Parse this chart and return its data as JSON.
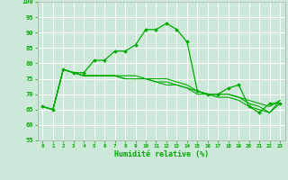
{
  "xlabel": "Humidité relative (%)",
  "xlim": [
    -0.5,
    23.5
  ],
  "ylim": [
    55,
    100
  ],
  "yticks": [
    55,
    60,
    65,
    70,
    75,
    80,
    85,
    90,
    95,
    100
  ],
  "xticks": [
    0,
    1,
    2,
    3,
    4,
    5,
    6,
    7,
    8,
    9,
    10,
    11,
    12,
    13,
    14,
    15,
    16,
    17,
    18,
    19,
    20,
    21,
    22,
    23
  ],
  "bg_color": "#cce8d8",
  "grid_color": "#ffffff",
  "line_color": "#00aa00",
  "line1_x": [
    0,
    1,
    2,
    3,
    4,
    5,
    6,
    7,
    8,
    9,
    10,
    11,
    12,
    13,
    14,
    15,
    16,
    17,
    18,
    19,
    20,
    21,
    22,
    23
  ],
  "line1_y": [
    66,
    65,
    78,
    77,
    77,
    81,
    81,
    84,
    84,
    86,
    91,
    91,
    93,
    91,
    87,
    71,
    70,
    70,
    72,
    73,
    66,
    64,
    67,
    67
  ],
  "line2_x": [
    0,
    1,
    2,
    3,
    4,
    5,
    6,
    7,
    8,
    9,
    10,
    11,
    12,
    13,
    14,
    15,
    16,
    17,
    18,
    19,
    20,
    21,
    22,
    23
  ],
  "line2_y": [
    66,
    65,
    78,
    77,
    76,
    76,
    76,
    76,
    76,
    76,
    75,
    75,
    75,
    74,
    73,
    71,
    70,
    70,
    70,
    69,
    68,
    67,
    66,
    68
  ],
  "line3_x": [
    0,
    1,
    2,
    3,
    4,
    5,
    6,
    7,
    8,
    9,
    10,
    11,
    12,
    13,
    14,
    15,
    16,
    17,
    18,
    19,
    20,
    21,
    22,
    23
  ],
  "line3_y": [
    66,
    65,
    78,
    77,
    76,
    76,
    76,
    76,
    75,
    75,
    75,
    74,
    74,
    73,
    72,
    71,
    70,
    70,
    70,
    69,
    67,
    66,
    64,
    68
  ],
  "line4_x": [
    0,
    1,
    2,
    3,
    4,
    5,
    6,
    7,
    8,
    9,
    10,
    11,
    12,
    13,
    14,
    15,
    16,
    17,
    18,
    19,
    20,
    21,
    22,
    23
  ],
  "line4_y": [
    66,
    65,
    78,
    77,
    76,
    76,
    76,
    76,
    75,
    75,
    75,
    74,
    73,
    73,
    72,
    70,
    70,
    69,
    69,
    68,
    66,
    65,
    64,
    67
  ]
}
